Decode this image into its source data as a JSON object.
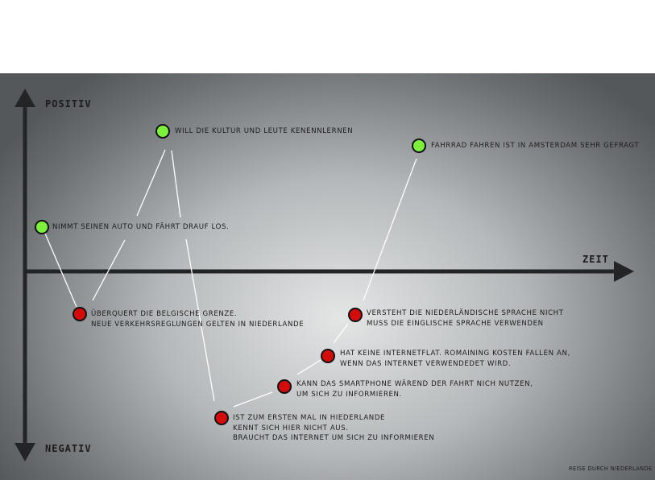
{
  "axes": {
    "top_label": "POSITIV",
    "bottom_label": "NEGATIV",
    "time_label": "ZEIT"
  },
  "colors": {
    "positive": "#7cf03a",
    "negative": "#d40b0b",
    "line": "#ffffff",
    "axis": "#222426"
  },
  "events": [
    {
      "sentiment": "positive",
      "lines": [
        "NIMMT SEINEN AUTO UND FÄHRT DRAUF LOS."
      ]
    },
    {
      "sentiment": "negative",
      "lines": [
        "ÜBERQUERT DIE BELGISCHE GRENZE.",
        "NEUE VERKEHRSREGLUNGEN GELTEN IN NIEDERLANDE"
      ]
    },
    {
      "sentiment": "positive",
      "lines": [
        "WILL DIE KULTUR UND LEUTE KENENNLERNEN"
      ]
    },
    {
      "sentiment": "negative",
      "lines": [
        "IST ZUM ERSTEN MAL IN HIEDERLANDE",
        "KENNT SICH HIER NICHT AUS.",
        "BRAUCHT DAS INTERNET UM SICH ZU INFORMIEREN"
      ]
    },
    {
      "sentiment": "negative",
      "lines": [
        "KANN DAS SMARTPHONE WÄREND DER FAHRT NICH NUTZEN,",
        "UM SICH ZU INFORMIEREN."
      ]
    },
    {
      "sentiment": "negative",
      "lines": [
        "HAT KEINE INTERNETFLAT. ROMAINING KOSTEN FALLEN AN,",
        "WENN DAS INTERNET VERWENDEDET WIRD."
      ]
    },
    {
      "sentiment": "negative",
      "lines": [
        "VERSTEHT DIE NIEDERLÄNDISCHE SPRACHE NICHT",
        "MUSS DIE EINGLISCHE SPRACHE VERWENDEN"
      ]
    },
    {
      "sentiment": "positive",
      "lines": [
        "FAHRRAD FAHREN IST IN AMSTERDAM SEHR GEFRAGT"
      ]
    }
  ],
  "credit": "REISE DURCH NIEDERLANDE"
}
